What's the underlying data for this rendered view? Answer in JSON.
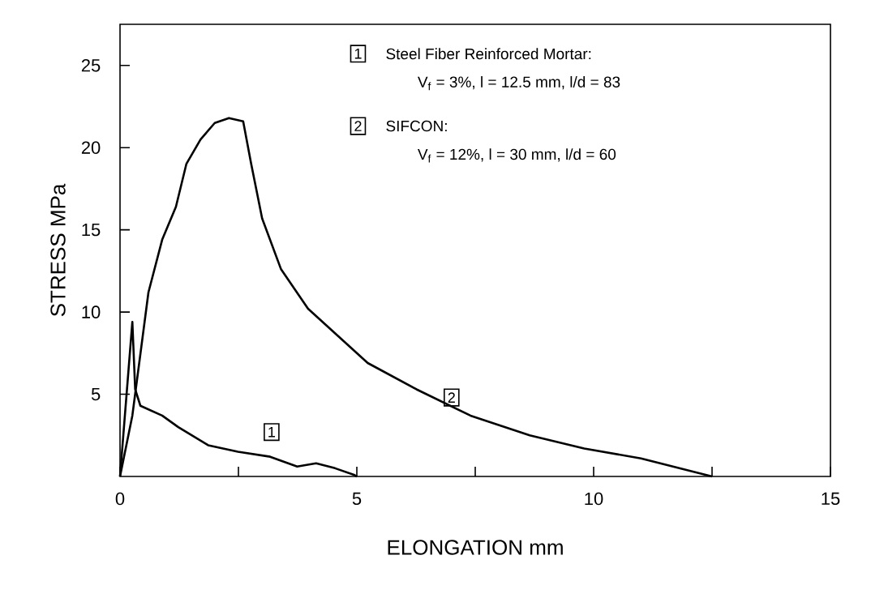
{
  "chart_data": {
    "type": "line",
    "xlabel": "ELONGATION    mm",
    "ylabel": "STRESS   MPa",
    "xlim": [
      0,
      15
    ],
    "ylim": [
      0,
      27.5
    ],
    "xticks": [
      0,
      {
        "value": 2.5,
        "label": null
      },
      5,
      {
        "value": 7.5,
        "label": null
      },
      10,
      {
        "value": 12.5,
        "label": null
      },
      15
    ],
    "yticks": [
      5,
      10,
      15,
      20,
      25
    ],
    "grid": false,
    "marker": "none",
    "line_style": "solid",
    "series": [
      {
        "color": "#000000",
        "x": [
          0,
          0.26,
          0.32,
          0.43,
          0.89,
          1.23,
          1.4,
          1.86,
          2.49,
          3.17,
          3.74,
          4.14,
          4.54,
          4.94,
          5.0
        ],
        "values": [
          0,
          9.4,
          5.3,
          4.3,
          3.7,
          3.0,
          2.7,
          1.9,
          1.5,
          1.2,
          0.6,
          0.8,
          0.5,
          0.1,
          0
        ]
      },
      {
        "color": "#000000",
        "x": [
          0,
          0.26,
          0.6,
          0.89,
          1.18,
          1.4,
          1.7,
          2.0,
          2.3,
          2.6,
          2.77,
          3.0,
          3.4,
          3.97,
          5.23,
          6.26,
          7.4,
          8.65,
          9.8,
          11.0,
          12.5
        ],
        "values": [
          0,
          3.7,
          11.2,
          14.4,
          16.4,
          19.0,
          20.5,
          21.5,
          21.8,
          21.6,
          19.0,
          15.7,
          12.6,
          10.2,
          6.9,
          5.3,
          3.7,
          2.5,
          1.7,
          1.1,
          0
        ]
      }
    ],
    "annotations": [
      {
        "text": "1",
        "x": 3.2,
        "y": 2.7
      },
      {
        "text": "2",
        "x": 7.0,
        "y": 4.8
      },
      "1",
      "Steel Fiber Reinforced Mortar:",
      "V$_{f}$  = 3%,    l = 12.5 mm,   l/d = 83",
      "2",
      "SIFCON:",
      "V$_{f}$  = 12%,  l = 30 mm,      l/d = 60"
    ]
  }
}
